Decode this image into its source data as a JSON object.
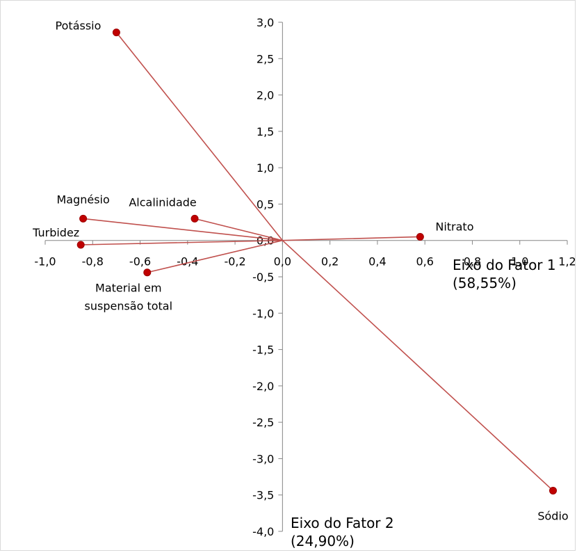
{
  "chart_data": {
    "type": "scatter",
    "x_axis": {
      "title_line1": "Eixo do Fator 1",
      "title_line2": "(58,55%)",
      "range": [
        -1.0,
        1.2
      ],
      "ticks": [
        {
          "value": -1.0,
          "label": "-1,0"
        },
        {
          "value": -0.8,
          "label": "-0,8"
        },
        {
          "value": -0.6,
          "label": "-0,6"
        },
        {
          "value": -0.4,
          "label": "-0,4"
        },
        {
          "value": -0.2,
          "label": "-0,2"
        },
        {
          "value": 0.0,
          "label": "0,0"
        },
        {
          "value": 0.2,
          "label": "0,2"
        },
        {
          "value": 0.4,
          "label": "0,4"
        },
        {
          "value": 0.6,
          "label": "0,6"
        },
        {
          "value": 0.8,
          "label": "0,8"
        },
        {
          "value": 1.0,
          "label": "1,0"
        },
        {
          "value": 1.2,
          "label": "1,2"
        }
      ]
    },
    "y_axis": {
      "title_line1": "Eixo do Fator 2",
      "title_line2": "(24,90%)",
      "range": [
        -4.0,
        3.0
      ],
      "ticks": [
        {
          "value": 3.0,
          "label": "3,0"
        },
        {
          "value": 2.5,
          "label": "2,5"
        },
        {
          "value": 2.0,
          "label": "2,0"
        },
        {
          "value": 1.5,
          "label": "1,5"
        },
        {
          "value": 1.0,
          "label": "1,0"
        },
        {
          "value": 0.5,
          "label": "0,5"
        },
        {
          "value": 0.0,
          "label": "0,0"
        },
        {
          "value": -0.5,
          "label": "-0,5"
        },
        {
          "value": -1.0,
          "label": "-1,0"
        },
        {
          "value": -1.5,
          "label": "-1,5"
        },
        {
          "value": -2.0,
          "label": "-2,0"
        },
        {
          "value": -2.5,
          "label": "-2,5"
        },
        {
          "value": -3.0,
          "label": "-3,0"
        },
        {
          "value": -3.5,
          "label": "-3,5"
        },
        {
          "value": -4.0,
          "label": "-4,0"
        }
      ]
    },
    "points": [
      {
        "label_lines": [
          "Potássio"
        ],
        "x": -0.7,
        "y": 2.86
      },
      {
        "label_lines": [
          "Magnésio"
        ],
        "x": -0.84,
        "y": 0.3
      },
      {
        "label_lines": [
          "Alcalinidade"
        ],
        "x": -0.37,
        "y": 0.3
      },
      {
        "label_lines": [
          "Turbidez"
        ],
        "x": -0.85,
        "y": -0.06
      },
      {
        "label_lines": [
          "Material em",
          "suspensão total"
        ],
        "x": -0.57,
        "y": -0.44
      },
      {
        "label_lines": [
          "Nitrato"
        ],
        "x": 0.58,
        "y": 0.05
      },
      {
        "label_lines": [
          "Sódio"
        ],
        "x": 1.14,
        "y": -3.44
      }
    ],
    "vectors_from_origin": true,
    "grid": false,
    "legend": "none",
    "colors": {
      "line": "#c0504d",
      "marker": "#c00000",
      "marker_stroke": "#9e0000",
      "axis": "#868686"
    }
  }
}
